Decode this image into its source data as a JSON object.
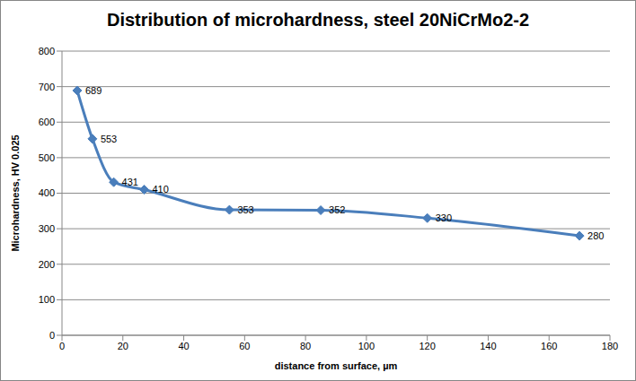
{
  "chart_data": {
    "type": "line",
    "title": "Distribution of microhardness, steel 20NiCrMo2-2",
    "x_label": "distance from surface, µm",
    "y_label": "Microhardness, HV 0.025",
    "x": [
      5,
      10,
      17,
      27,
      55,
      85,
      120,
      170
    ],
    "values": [
      689,
      553,
      431,
      410,
      353,
      352,
      330,
      280
    ],
    "color": "#4a7ebb",
    "marker": "diamond",
    "line_style": "solid",
    "xlim": [
      0,
      180
    ],
    "xticks": [
      0,
      20,
      40,
      60,
      80,
      100,
      120,
      140,
      160,
      180
    ],
    "ylim": [
      0,
      800
    ],
    "yticks": [
      0,
      100,
      200,
      300,
      400,
      500,
      600,
      700,
      800
    ],
    "grid": true,
    "data_labels": true
  }
}
